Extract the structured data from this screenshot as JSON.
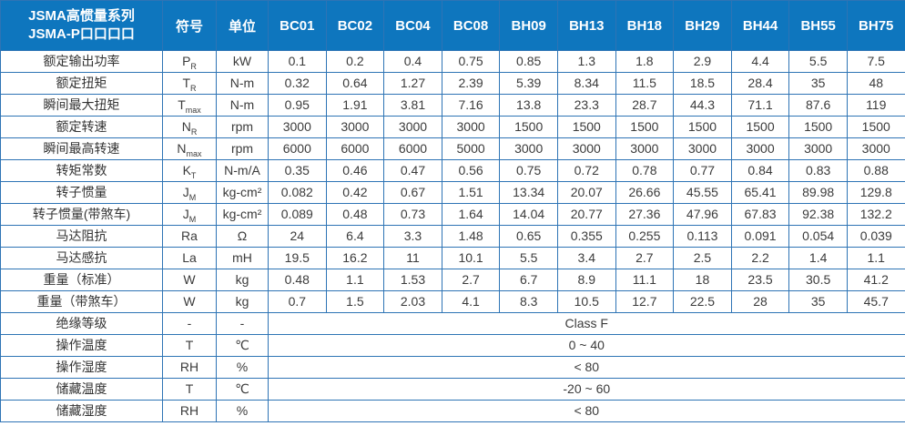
{
  "table": {
    "colors": {
      "header_bg": "#0E76BE",
      "header_text": "#FFFFFF",
      "header_divider": "#0A5E9E",
      "border": "#2E74B5",
      "body_text": "#3B3B3B"
    },
    "header": {
      "title_line1": "JSMA高惯量系列",
      "title_line2": "JSMA-P口口口口",
      "symbol_col": "符号",
      "unit_col": "单位",
      "models": [
        "BC01",
        "BC02",
        "BC04",
        "BC08",
        "BH09",
        "BH13",
        "BH18",
        "BH29",
        "BH44",
        "BH55",
        "BH75"
      ]
    },
    "rows": [
      {
        "label": "额定输出功率",
        "symbol": {
          "base": "P",
          "sub": "R"
        },
        "unit": "kW",
        "values": [
          "0.1",
          "0.2",
          "0.4",
          "0.75",
          "0.85",
          "1.3",
          "1.8",
          "2.9",
          "4.4",
          "5.5",
          "7.5"
        ]
      },
      {
        "label": "额定扭矩",
        "symbol": {
          "base": "T",
          "sub": "R"
        },
        "unit": "N-m",
        "values": [
          "0.32",
          "0.64",
          "1.27",
          "2.39",
          "5.39",
          "8.34",
          "11.5",
          "18.5",
          "28.4",
          "35",
          "48"
        ]
      },
      {
        "label": "瞬间最大扭矩",
        "symbol": {
          "base": "T",
          "sub": "max"
        },
        "unit": "N-m",
        "values": [
          "0.95",
          "1.91",
          "3.81",
          "7.16",
          "13.8",
          "23.3",
          "28.7",
          "44.3",
          "71.1",
          "87.6",
          "119"
        ]
      },
      {
        "label": "额定转速",
        "symbol": {
          "base": "N",
          "sub": "R"
        },
        "unit": "rpm",
        "values": [
          "3000",
          "3000",
          "3000",
          "3000",
          "1500",
          "1500",
          "1500",
          "1500",
          "1500",
          "1500",
          "1500"
        ]
      },
      {
        "label": "瞬间最高转速",
        "symbol": {
          "base": "N",
          "sub": "max"
        },
        "unit": "rpm",
        "values": [
          "6000",
          "6000",
          "6000",
          "5000",
          "3000",
          "3000",
          "3000",
          "3000",
          "3000",
          "3000",
          "3000"
        ]
      },
      {
        "label": "转矩常数",
        "symbol": {
          "base": "K",
          "sub": "T"
        },
        "unit": "N-m/A",
        "values": [
          "0.35",
          "0.46",
          "0.47",
          "0.56",
          "0.75",
          "0.72",
          "0.78",
          "0.77",
          "0.84",
          "0.83",
          "0.88"
        ]
      },
      {
        "label": "转子惯量",
        "symbol": {
          "base": "J",
          "sub": "M"
        },
        "unit": "kg-cm²",
        "values": [
          "0.082",
          "0.42",
          "0.67",
          "1.51",
          "13.34",
          "20.07",
          "26.66",
          "45.55",
          "65.41",
          "89.98",
          "129.8"
        ]
      },
      {
        "label": "转子惯量(带煞车)",
        "symbol": {
          "base": "J",
          "sub": "M"
        },
        "unit": "kg-cm²",
        "values": [
          "0.089",
          "0.48",
          "0.73",
          "1.64",
          "14.04",
          "20.77",
          "27.36",
          "47.96",
          "67.83",
          "92.38",
          "132.2"
        ]
      },
      {
        "label": "马达阻抗",
        "symbol": {
          "base": "Ra",
          "sub": ""
        },
        "unit": "Ω",
        "values": [
          "24",
          "6.4",
          "3.3",
          "1.48",
          "0.65",
          "0.355",
          "0.255",
          "0.113",
          "0.091",
          "0.054",
          "0.039"
        ]
      },
      {
        "label": "马达感抗",
        "symbol": {
          "base": "La",
          "sub": ""
        },
        "unit": "mH",
        "values": [
          "19.5",
          "16.2",
          "11",
          "10.1",
          "5.5",
          "3.4",
          "2.7",
          "2.5",
          "2.2",
          "1.4",
          "1.1"
        ]
      },
      {
        "label": "重量（标准）",
        "symbol": {
          "base": "W",
          "sub": ""
        },
        "unit": "kg",
        "values": [
          "0.48",
          "1.1",
          "1.53",
          "2.7",
          "6.7",
          "8.9",
          "11.1",
          "18",
          "23.5",
          "30.5",
          "41.2"
        ]
      },
      {
        "label": "重量（带煞车）",
        "symbol": {
          "base": "W",
          "sub": ""
        },
        "unit": "kg",
        "values": [
          "0.7",
          "1.5",
          "2.03",
          "4.1",
          "8.3",
          "10.5",
          "12.7",
          "22.5",
          "28",
          "35",
          "45.7"
        ]
      }
    ],
    "span_rows": [
      {
        "label": "绝缘等级",
        "symbol": "-",
        "unit": "-",
        "value": "Class F"
      },
      {
        "label": "操作温度",
        "symbol": "T",
        "unit": "℃",
        "value": "0 ~ 40"
      },
      {
        "label": "操作湿度",
        "symbol": "RH",
        "unit": "%",
        "value": "< 80"
      },
      {
        "label": "储藏温度",
        "symbol": "T",
        "unit": "℃",
        "value": "-20 ~ 60"
      },
      {
        "label": "储藏湿度",
        "symbol": "RH",
        "unit": "%",
        "value": "< 80"
      }
    ]
  }
}
